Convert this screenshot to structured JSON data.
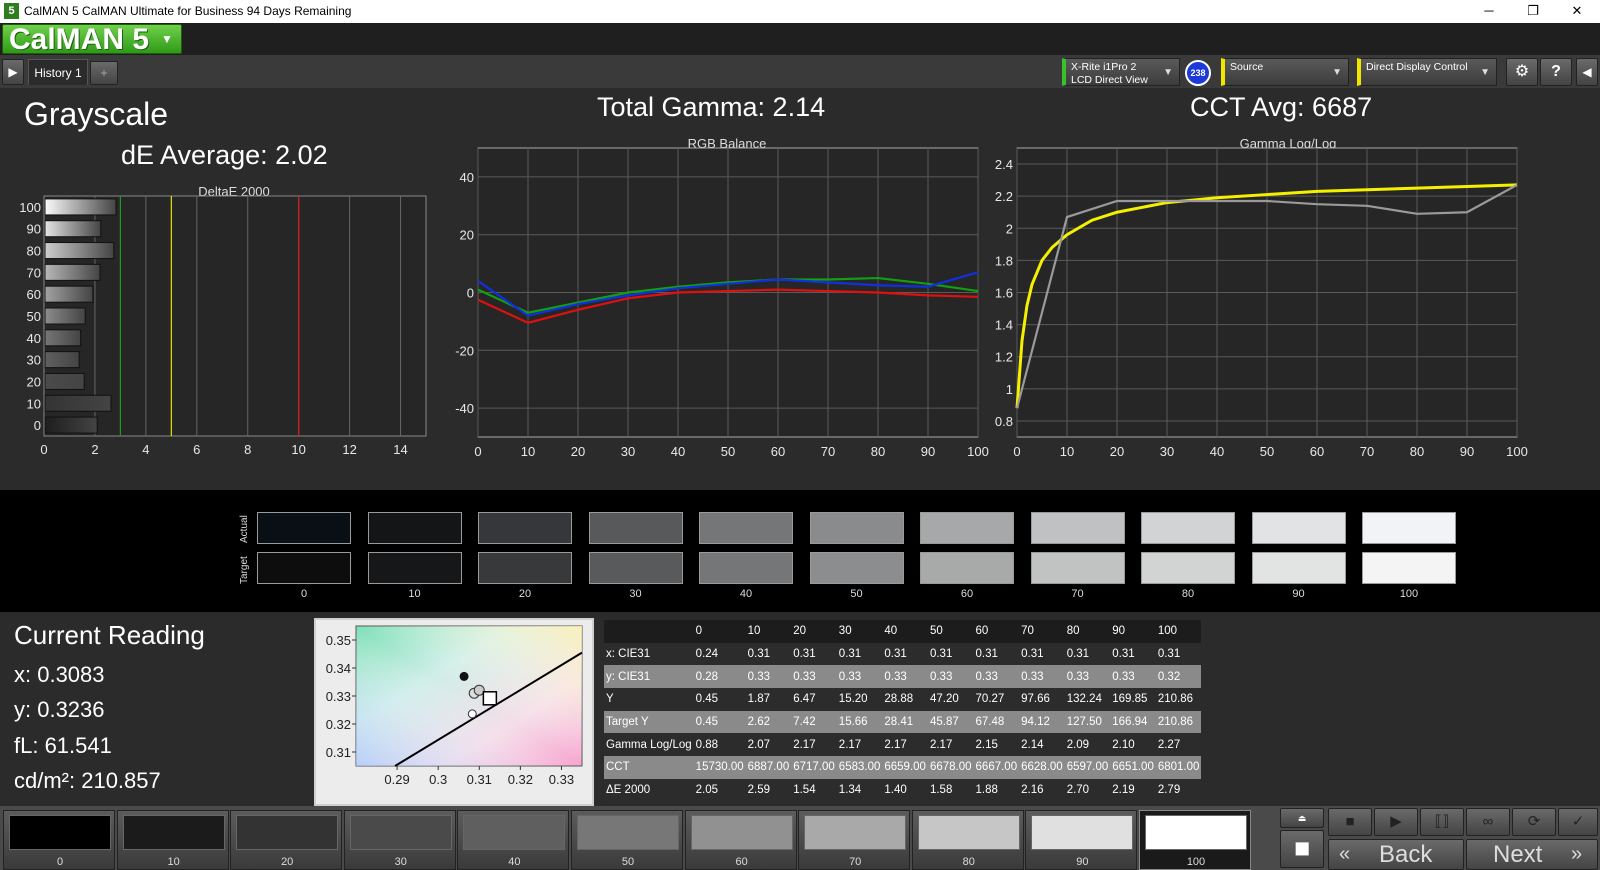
{
  "window": {
    "title": "CalMAN 5 CalMAN Ultimate for Business 94 Days Remaining",
    "app_icon": "5",
    "minimize": "─",
    "maximize": "❐",
    "close": "✕"
  },
  "brand": {
    "logo": "CalMAN 5"
  },
  "tabs": {
    "history": "History 1",
    "add": "+"
  },
  "devices": {
    "meter_line1": "X-Rite i1Pro 2",
    "meter_line2": "LCD Direct View",
    "meter_badge": "238",
    "source": "Source",
    "display": "Direct Display Control"
  },
  "page": {
    "title": "Grayscale",
    "de_average": "dE Average: 2.02",
    "total_gamma": "Total Gamma: 2.14",
    "cct_avg": "CCT Avg: 6687"
  },
  "chart_data": [
    {
      "type": "bar",
      "title": "DeltaE 2000",
      "orientation": "horizontal",
      "categories": [
        "100",
        "90",
        "80",
        "70",
        "60",
        "50",
        "40",
        "30",
        "20",
        "10",
        "0"
      ],
      "values": [
        2.79,
        2.19,
        2.7,
        2.16,
        1.88,
        1.58,
        1.4,
        1.34,
        1.54,
        2.59,
        2.05
      ],
      "xlim": [
        0,
        15
      ],
      "xticks": [
        "0",
        "2",
        "4",
        "6",
        "8",
        "10",
        "12",
        "14"
      ],
      "reference_lines": [
        {
          "x": 3,
          "color": "#1e9b1e"
        },
        {
          "x": 5,
          "color": "#e8e000"
        },
        {
          "x": 10,
          "color": "#d81e1e"
        }
      ]
    },
    {
      "type": "line",
      "title": "RGB Balance",
      "x": [
        0,
        10,
        20,
        30,
        40,
        50,
        60,
        70,
        80,
        90,
        100
      ],
      "ylim": [
        -50,
        50
      ],
      "yticks": [
        "40",
        "20",
        "0",
        "-20",
        "-40"
      ],
      "xticks": [
        "0",
        "10",
        "20",
        "30",
        "40",
        "50",
        "60",
        "70",
        "80",
        "90",
        "100"
      ],
      "series": [
        {
          "color": "#e01010",
          "values": [
            -2.5,
            -10.5,
            -6,
            -2,
            0,
            0.5,
            1,
            0.5,
            0,
            -1,
            -1.5
          ]
        },
        {
          "color": "#10a010",
          "values": [
            1,
            -7,
            -3.5,
            0,
            2,
            3.5,
            4.5,
            4.5,
            5,
            3,
            0.5
          ]
        },
        {
          "color": "#1030e0",
          "values": [
            4,
            -8,
            -4,
            -1,
            1.5,
            3,
            4.5,
            3.5,
            2.5,
            2,
            7
          ]
        }
      ]
    },
    {
      "type": "line",
      "title": "Gamma Log/Log",
      "x": [
        0,
        1,
        2,
        3,
        5,
        7,
        10,
        15,
        20,
        30,
        40,
        50,
        60,
        70,
        80,
        90,
        100
      ],
      "ylim": [
        0.7,
        2.5
      ],
      "yticks": [
        "2.4",
        "2.2",
        "2",
        "1.8",
        "1.6",
        "1.4",
        "1.2",
        "1",
        "0.8"
      ],
      "xticks": [
        "0",
        "10",
        "20",
        "30",
        "40",
        "50",
        "60",
        "70",
        "80",
        "90",
        "100"
      ],
      "series": [
        {
          "color": "#f4f000",
          "values": [
            0.88,
            1.3,
            1.52,
            1.65,
            1.8,
            1.88,
            1.96,
            2.05,
            2.1,
            2.16,
            2.19,
            2.21,
            2.23,
            2.24,
            2.25,
            2.26,
            2.27
          ]
        },
        {
          "color": "#9a9a9a",
          "x": [
            0,
            10,
            20,
            30,
            40,
            50,
            60,
            70,
            80,
            90,
            100
          ],
          "values": [
            0.88,
            2.07,
            2.17,
            2.17,
            2.17,
            2.17,
            2.15,
            2.14,
            2.09,
            2.1,
            2.27
          ]
        }
      ]
    },
    {
      "type": "scatter",
      "title": "CIE xy",
      "xlim": [
        0.28,
        0.335
      ],
      "ylim": [
        0.305,
        0.355
      ],
      "xticks": [
        "0.29",
        "0.3",
        "0.31",
        "0.32",
        "0.33"
      ],
      "yticks": [
        "0.35",
        "0.34",
        "0.33",
        "0.32",
        "0.31"
      ],
      "points": [
        {
          "x": 0.3083,
          "y": 0.3236,
          "style": "open-circle"
        },
        {
          "x": 0.3063,
          "y": 0.337,
          "style": "filled-circle"
        },
        {
          "x": 0.3095,
          "y": 0.331,
          "style": "gray-circles"
        },
        {
          "x": 0.3127,
          "y": 0.329,
          "style": "target-square"
        }
      ],
      "blackbody": [
        [
          0.2895,
          0.305
        ],
        [
          0.335,
          0.3455
        ]
      ]
    }
  ],
  "swatches": {
    "row_actual": "Actual",
    "row_target": "Target",
    "labels": [
      "0",
      "10",
      "20",
      "30",
      "40",
      "50",
      "60",
      "70",
      "80",
      "90",
      "100"
    ],
    "actual_colors": [
      "#081016",
      "#141517",
      "#35373a",
      "#57595b",
      "#747678",
      "#898b8d",
      "#a6a8a9",
      "#c0c1c3",
      "#d1d3d4",
      "#e1e3e5",
      "#f2f3f6"
    ],
    "target_colors": [
      "#0d0d0e",
      "#161718",
      "#38393a",
      "#595a5b",
      "#757677",
      "#8c8d8e",
      "#a8a9a9",
      "#c1c2c2",
      "#d2d3d3",
      "#e2e3e3",
      "#f4f4f4"
    ]
  },
  "current_reading": {
    "title": "Current Reading",
    "x": "x: 0.3083",
    "y": "y: 0.3236",
    "fl": "fL: 61.541",
    "cdm2": "cd/m²: 210.857"
  },
  "table": {
    "header": [
      "",
      "0",
      "10",
      "20",
      "30",
      "40",
      "50",
      "60",
      "70",
      "80",
      "90",
      "100"
    ],
    "rows": [
      {
        "label": "x: CIE31",
        "values": [
          "0.24",
          "0.31",
          "0.31",
          "0.31",
          "0.31",
          "0.31",
          "0.31",
          "0.31",
          "0.31",
          "0.31",
          "0.31"
        ]
      },
      {
        "label": "y: CIE31",
        "values": [
          "0.28",
          "0.33",
          "0.33",
          "0.33",
          "0.33",
          "0.33",
          "0.33",
          "0.33",
          "0.33",
          "0.33",
          "0.32"
        ]
      },
      {
        "label": "Y",
        "values": [
          "0.45",
          "1.87",
          "6.47",
          "15.20",
          "28.88",
          "47.20",
          "70.27",
          "97.66",
          "132.24",
          "169.85",
          "210.86"
        ]
      },
      {
        "label": "Target Y",
        "values": [
          "0.45",
          "2.62",
          "7.42",
          "15.66",
          "28.41",
          "45.87",
          "67.48",
          "94.12",
          "127.50",
          "166.94",
          "210.86"
        ]
      },
      {
        "label": "Gamma Log/Log",
        "values": [
          "0.88",
          "2.07",
          "2.17",
          "2.17",
          "2.17",
          "2.17",
          "2.15",
          "2.14",
          "2.09",
          "2.10",
          "2.27"
        ]
      },
      {
        "label": "CCT",
        "values": [
          "15730.00",
          "6887.00",
          "6717.00",
          "6583.00",
          "6659.00",
          "6678.00",
          "6667.00",
          "6628.00",
          "6597.00",
          "6651.00",
          "6801.00"
        ]
      },
      {
        "label": "ΔE 2000",
        "values": [
          "2.05",
          "2.59",
          "1.54",
          "1.34",
          "1.40",
          "1.58",
          "1.88",
          "2.16",
          "2.70",
          "2.19",
          "2.79"
        ]
      }
    ]
  },
  "bottom": {
    "patch_labels": [
      "0",
      "10",
      "20",
      "30",
      "40",
      "50",
      "60",
      "70",
      "80",
      "90",
      "100"
    ],
    "patch_colors": [
      "#000000",
      "#1b1b1b",
      "#333333",
      "#4a4a4a",
      "#5f5f5f",
      "#777777",
      "#919191",
      "#a9a9a9",
      "#c6c6c6",
      "#e0e0e0",
      "#ffffff"
    ],
    "selected": "100",
    "back": "Back",
    "next": "Next"
  }
}
